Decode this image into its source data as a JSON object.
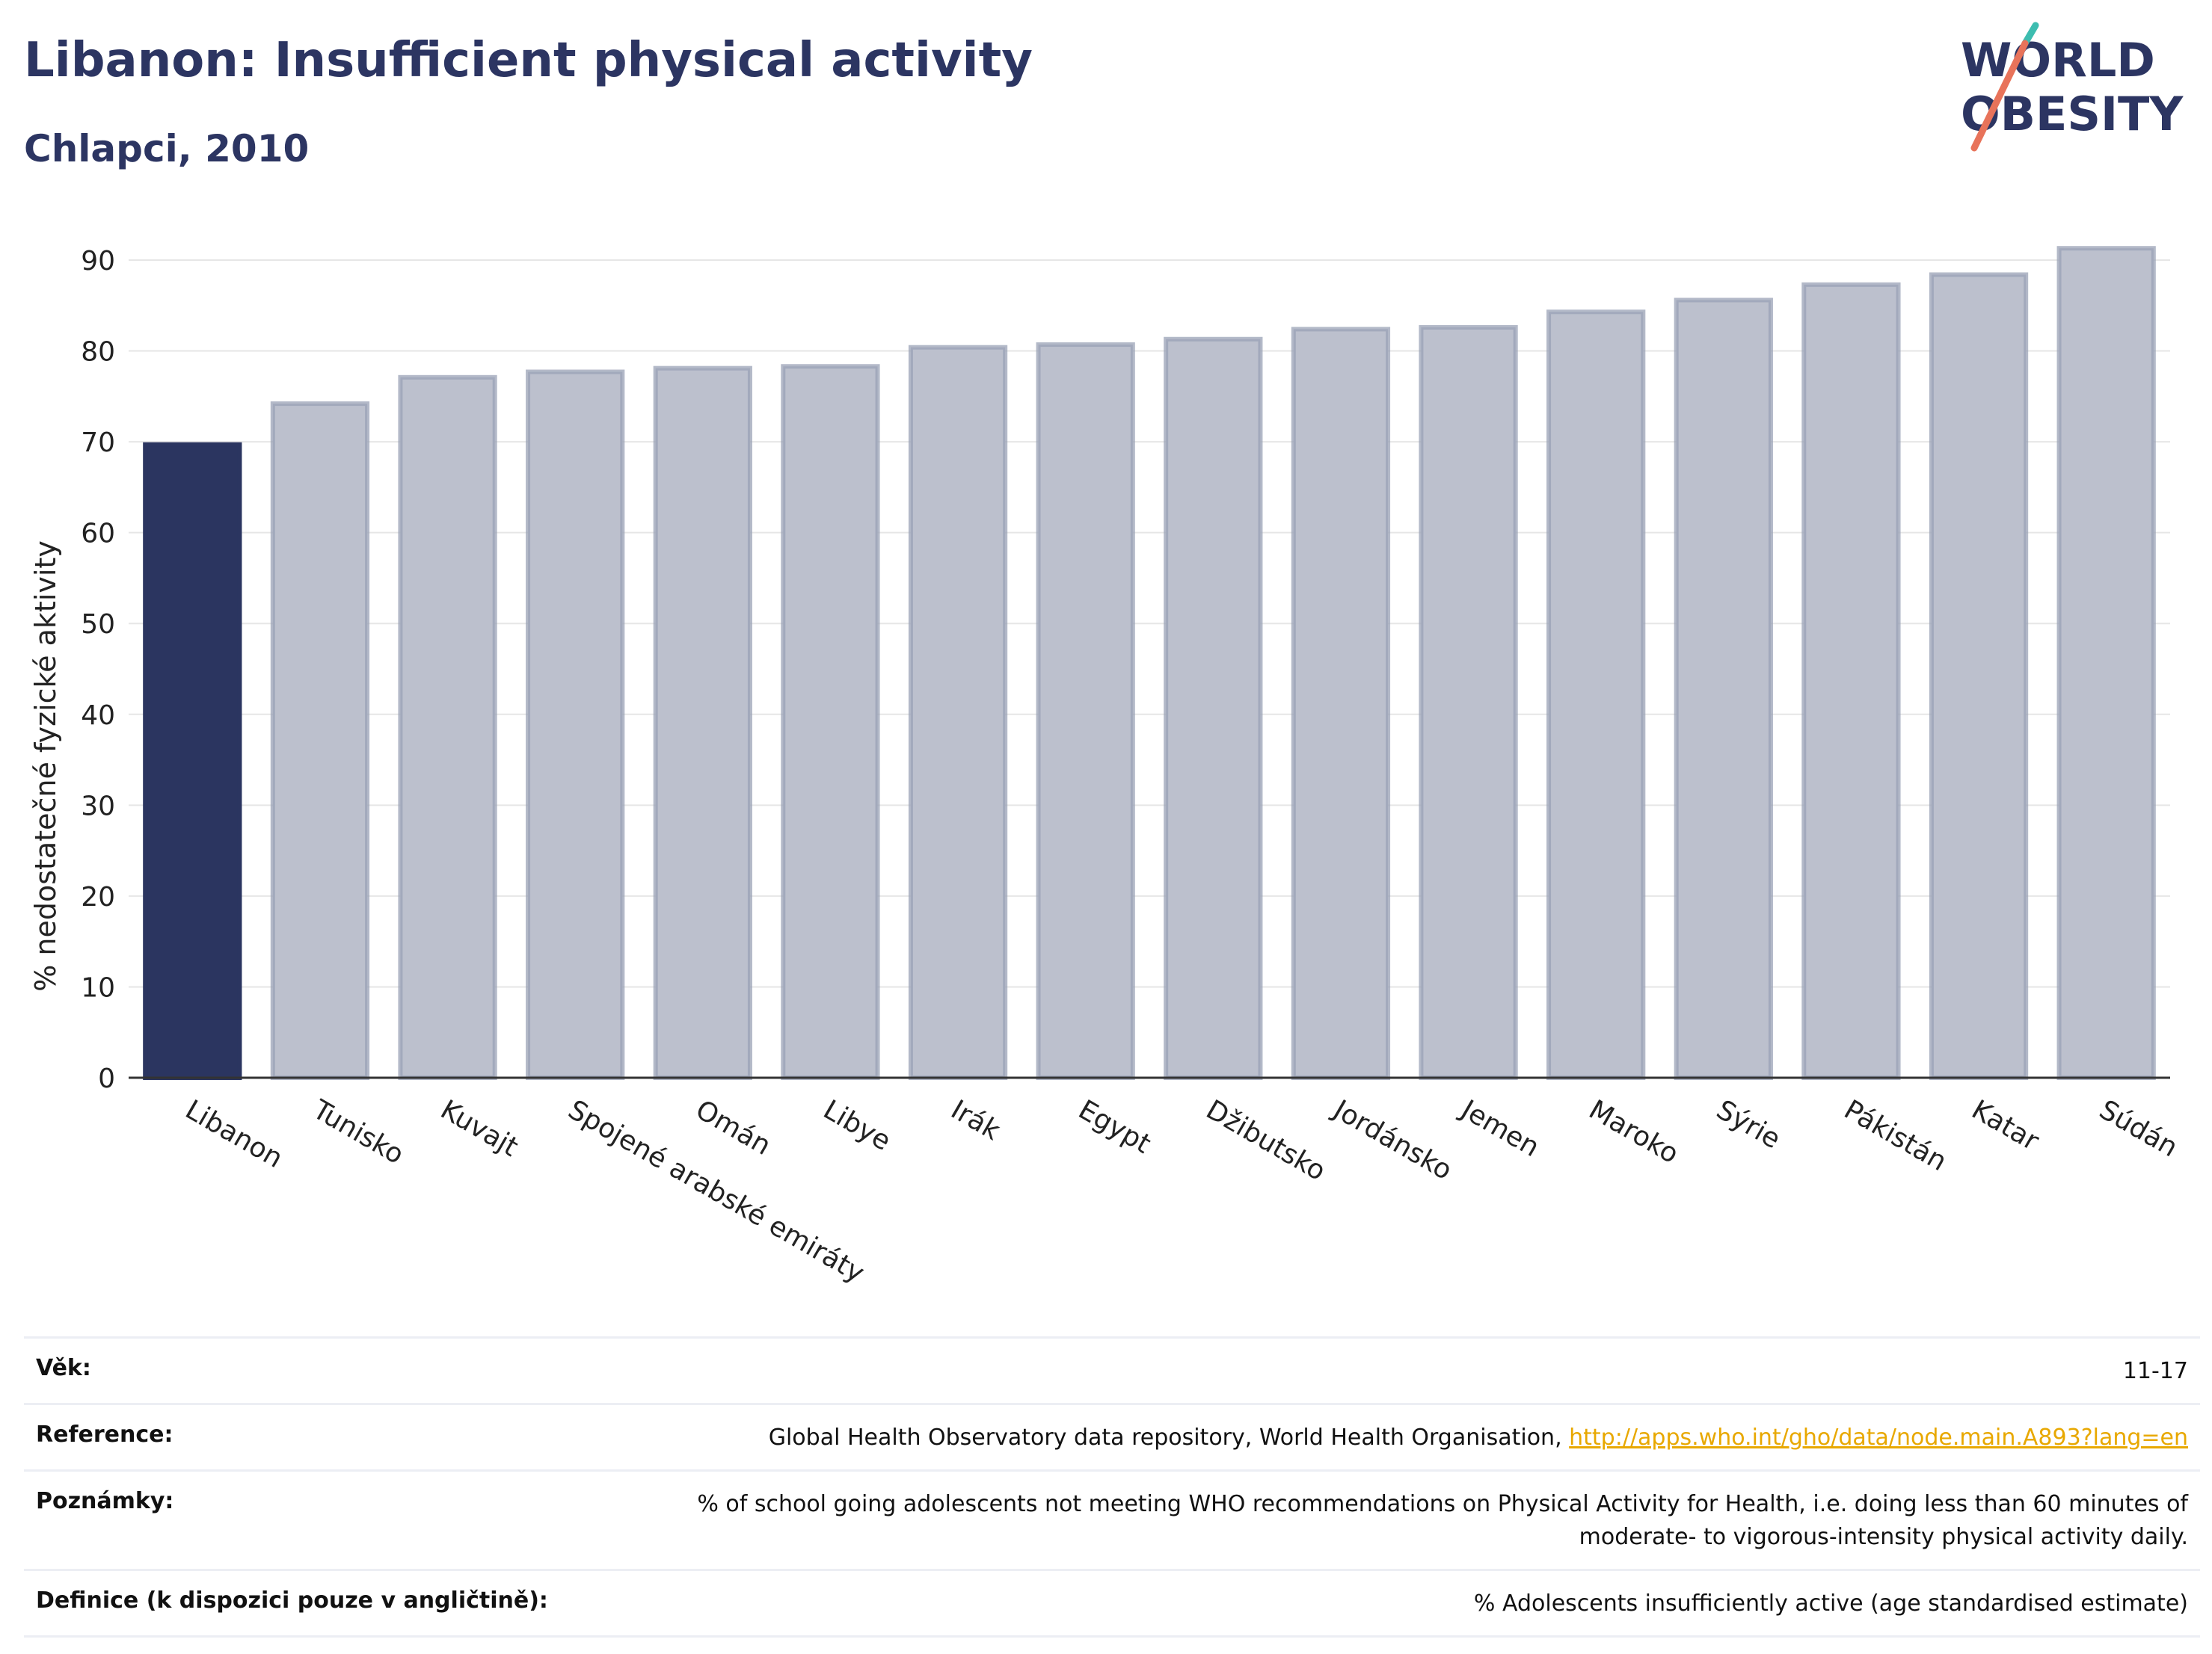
{
  "header": {
    "title": "Libanon: Insufficient physical activity",
    "subtitle": "Chlapci, 2010"
  },
  "logo": {
    "line1": "WORLD",
    "line2": "OBESITY"
  },
  "chart_data": {
    "type": "bar",
    "title": "Libanon: Insufficient physical activity",
    "subtitle": "Chlapci, 2010",
    "xlabel": "",
    "ylabel": "% nedostatečné fyzické aktivity",
    "ylim": [
      0,
      92
    ],
    "yticks": [
      0,
      10,
      20,
      30,
      40,
      50,
      60,
      70,
      80,
      90
    ],
    "grid": true,
    "categories": [
      "Libanon",
      "Tunisko",
      "Kuvajt",
      "Spojené arabské emiráty",
      "Omán",
      "Libye",
      "Irák",
      "Egypt",
      "Džibutsko",
      "Jordánsko",
      "Jemen",
      "Maroko",
      "Sýrie",
      "Pákistán",
      "Katar",
      "Súdán"
    ],
    "values": [
      69.7,
      74.2,
      77.1,
      77.7,
      78.1,
      78.3,
      80.4,
      80.7,
      81.3,
      82.4,
      82.6,
      84.3,
      85.6,
      87.3,
      88.4,
      91.3
    ],
    "highlight_index": 0,
    "colors": {
      "highlight": "#2b3560",
      "bar_fill": "#bcc0cd",
      "bar_stroke": "#9aa1b6",
      "grid": "#e6e6e6",
      "axis": "#333333"
    }
  },
  "meta": {
    "age_label": "Věk:",
    "age_value": "11-17",
    "reference_label": "Reference:",
    "reference_text": "Global Health Observatory data repository, World Health Organisation, ",
    "reference_link": "http://apps.who.int/gho/data/node.main.A893?lang=en",
    "notes_label": "Poznámky:",
    "notes_line1": "% of school going adolescents not meeting WHO recommendations on Physical Activity for Health, i.e. doing less than 60 minutes of",
    "notes_line2": "moderate- to vigorous-intensity physical activity daily.",
    "definition_label": "Definice (k dispozici pouze v angličtině):",
    "definition_value": "% Adolescents insufficiently active (age standardised estimate)"
  }
}
